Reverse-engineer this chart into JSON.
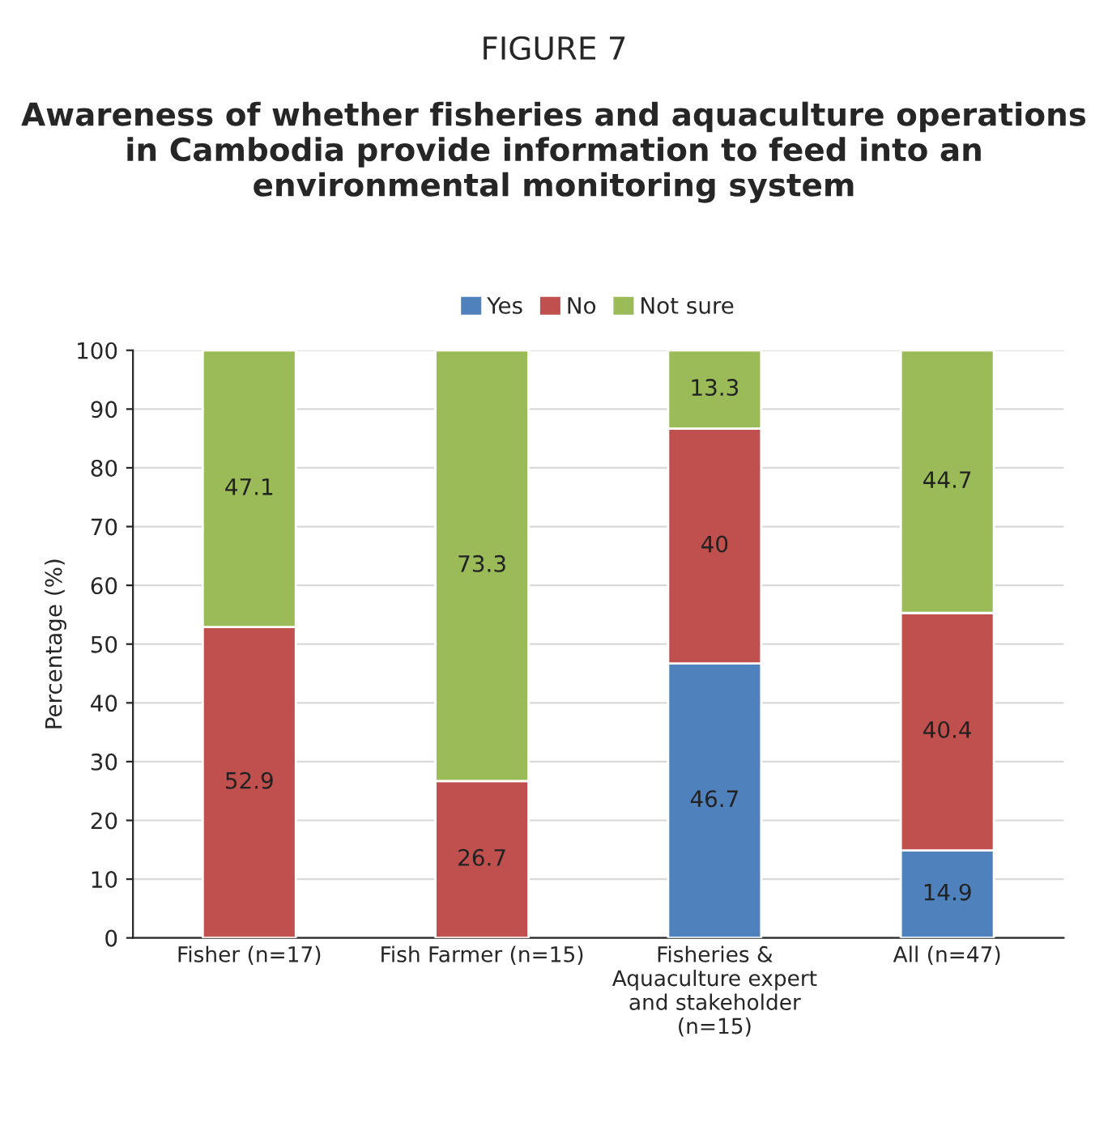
{
  "chart_data": {
    "type": "bar",
    "title": "FIGURE 7",
    "subtitle": "Awareness of whether fisheries and aquaculture operations in Cambodia provide information to feed into an environmental monitoring system",
    "ylabel": "Percentage (%)",
    "categories": [
      "Fisher (n=17)",
      "Fish Farmer (n=15)",
      "Fisheries &\nAquaculture expert\nand stakeholder\n(n=15)",
      "All (n=47)"
    ],
    "stacked": true,
    "series": [
      {
        "name": "Yes",
        "color": "#4f81bd",
        "values": [
          0,
          0,
          46.7,
          14.9
        ],
        "value_labels": [
          null,
          null,
          "46.7",
          "14.9"
        ]
      },
      {
        "name": "No",
        "color": "#c0504d",
        "values": [
          52.9,
          26.7,
          40,
          40.4
        ],
        "value_labels": [
          "52.9",
          "26.7",
          "40",
          "40.4"
        ]
      },
      {
        "name": "Not sure",
        "color": "#9bbb59",
        "values": [
          47.1,
          73.3,
          13.3,
          44.7
        ],
        "value_labels": [
          "47.1",
          "73.3",
          "13.3",
          "44.7"
        ]
      }
    ],
    "ylim": [
      0,
      100
    ],
    "yticks": [
      0,
      10,
      20,
      30,
      40,
      50,
      60,
      70,
      80,
      90,
      100
    ],
    "grid": "y",
    "legend": "top"
  }
}
